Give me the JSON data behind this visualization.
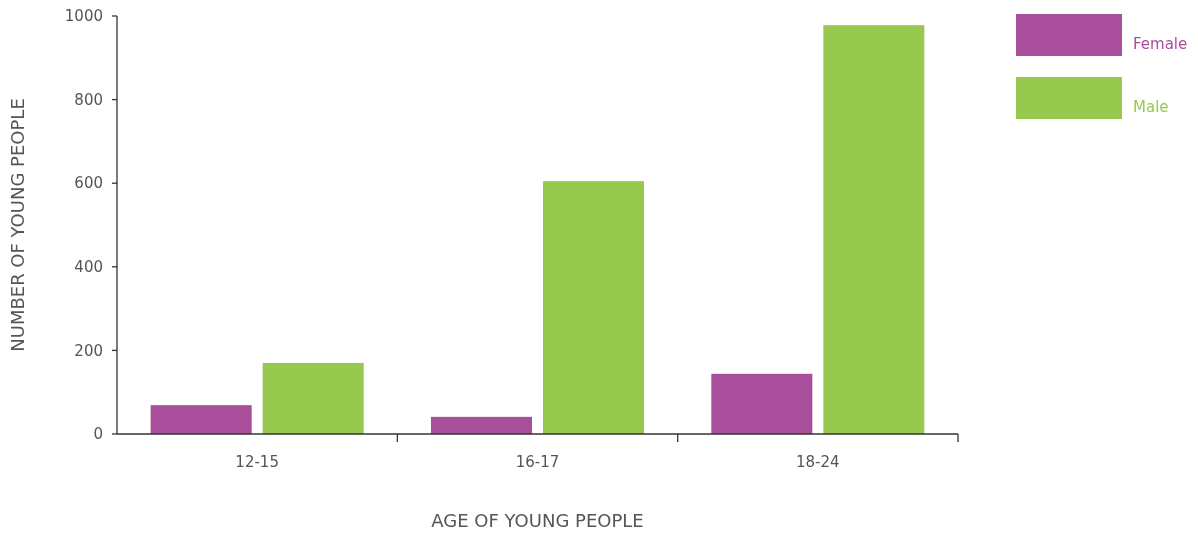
{
  "chart_data": {
    "type": "bar",
    "xlabel": "AGE OF YOUNG PEOPLE",
    "ylabel": "NUMBER OF YOUNG PEOPLE",
    "categories": [
      "12-15",
      "16-17",
      "18-24"
    ],
    "series": [
      {
        "name": "Female",
        "color": "#a94e9a",
        "values": [
          69,
          41,
          144
        ]
      },
      {
        "name": "Male",
        "color": "#97c94e",
        "values": [
          170,
          605,
          978
        ]
      }
    ],
    "ylim": [
      0,
      1000
    ],
    "yticks": [
      0,
      200,
      400,
      600,
      800,
      1000
    ],
    "legend": "top right"
  }
}
